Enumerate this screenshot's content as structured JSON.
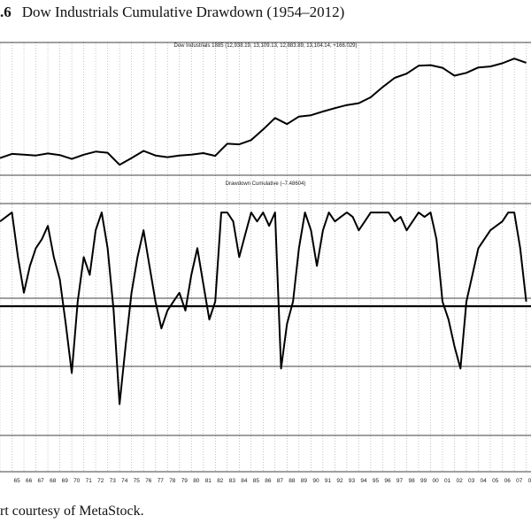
{
  "figure": {
    "number": ".6",
    "title": "Dow Industrials Cumulative Drawdown (1954–2012)",
    "credit": "rt courtesy of MetaStock."
  },
  "chart_data": [
    {
      "type": "line",
      "title": "Dow Industrials 1885 (12,938.19, 13,109.13, 12,883.89, 13,104.14, +166.029)",
      "log_scale": true,
      "grid": "vertical dotted per year",
      "x_unit": "year",
      "x": [
        1964,
        1965,
        1966,
        1967,
        1968,
        1969,
        1970,
        1971,
        1972,
        1973,
        1974,
        1975,
        1976,
        1977,
        1978,
        1979,
        1980,
        1981,
        1982,
        1983,
        1984,
        1985,
        1986,
        1987,
        1988,
        1989,
        1990,
        1991,
        1992,
        1993,
        1994,
        1995,
        1996,
        1997,
        1998,
        1999,
        2000,
        2001,
        2002,
        2003,
        2004,
        2005,
        2006,
        2007,
        2008
      ],
      "y": [
        800,
        900,
        880,
        860,
        910,
        870,
        780,
        880,
        960,
        930,
        660,
        800,
        980,
        860,
        820,
        860,
        880,
        920,
        850,
        1200,
        1180,
        1330,
        1800,
        2500,
        2100,
        2600,
        2700,
        3000,
        3300,
        3600,
        3800,
        4500,
        6000,
        7800,
        8800,
        11000,
        11200,
        10400,
        8300,
        9000,
        10500,
        10800,
        11800,
        13500,
        12000
      ],
      "ylim": [
        600,
        15000
      ]
    },
    {
      "type": "line",
      "title": "Drawdown Cumulative (–7.48604)",
      "x_unit": "year",
      "x": [
        1964,
        1964.5,
        1965,
        1965.5,
        1966,
        1966.5,
        1967,
        1967.5,
        1968,
        1968.5,
        1969,
        1969.5,
        1970,
        1970.5,
        1971,
        1971.5,
        1972,
        1972.5,
        1973,
        1973.5,
        1974,
        1974.5,
        1975,
        1975.5,
        1976,
        1976.5,
        1977,
        1977.5,
        1978,
        1978.5,
        1979,
        1979.5,
        1980,
        1980.5,
        1981,
        1981.5,
        1982,
        1982.5,
        1983,
        1983.5,
        1984,
        1984.5,
        1985,
        1985.5,
        1986,
        1986.5,
        1987,
        1987.5,
        1988,
        1988.5,
        1989,
        1989.5,
        1990,
        1990.5,
        1991,
        1991.5,
        1992,
        1992.5,
        1993,
        1993.5,
        1994,
        1994.5,
        1995,
        1995.5,
        1996,
        1996.5,
        1997,
        1997.5,
        1998,
        1998.5,
        1999,
        1999.5,
        2000,
        2000.5,
        2001,
        2001.5,
        2002,
        2002.5,
        2003,
        2003.5,
        2004,
        2004.5,
        2005,
        2005.5,
        2006,
        2006.5,
        2007,
        2007.5,
        2008
      ],
      "y": [
        -2,
        -1,
        0,
        -10,
        -18,
        -12,
        -8,
        -6,
        -3,
        -10,
        -15,
        -25,
        -36,
        -20,
        -10,
        -14,
        -4,
        0,
        -8,
        -22,
        -43,
        -30,
        -18,
        -10,
        -4,
        -12,
        -20,
        -26,
        -22,
        -20,
        -18,
        -22,
        -14,
        -8,
        -16,
        -24,
        -20,
        0,
        0,
        -2,
        -10,
        -5,
        0,
        -2,
        0,
        -3,
        0,
        -35,
        -25,
        -20,
        -8,
        0,
        -4,
        -12,
        -4,
        0,
        -2,
        -1,
        0,
        -1,
        -4,
        -2,
        0,
        0,
        0,
        0,
        -2,
        -1,
        -4,
        -2,
        0,
        -1,
        0,
        -6,
        -20,
        -24,
        -30,
        -35,
        -20,
        -14,
        -8,
        -6,
        -4,
        -3,
        -2,
        0,
        0,
        -8,
        -20
      ],
      "ylim": [
        -50,
        2
      ]
    }
  ],
  "x_tick_labels": [
    "65",
    "66",
    "67",
    "68",
    "69",
    "70",
    "71",
    "72",
    "73",
    "74",
    "75",
    "76",
    "77",
    "78",
    "79",
    "80",
    "81",
    "82",
    "83",
    "84",
    "85",
    "86",
    "87",
    "88",
    "89",
    "90",
    "91",
    "92",
    "93",
    "94",
    "95",
    "96",
    "97",
    "98",
    "99",
    "00",
    "01",
    "02",
    "03",
    "04",
    "05",
    "06",
    "07",
    "08"
  ]
}
